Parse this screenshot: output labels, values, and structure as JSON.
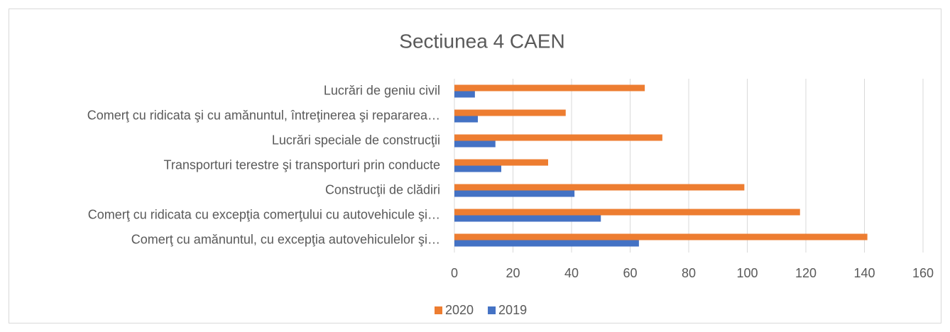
{
  "chart_data": {
    "type": "hbar",
    "title": "Sectiunea 4  CAEN",
    "categories": [
      "Lucrări de geniu civil",
      "Comerţ cu ridicata şi cu amănuntul, întreţinerea şi repararea…",
      "Lucrări speciale de construcţii",
      "Transporturi terestre şi transporturi prin conducte",
      "Construcţii de clădiri",
      "Comerţ cu ridicata cu excepţia comerţului cu autovehicule şi…",
      "Comerţ cu amănuntul, cu excepţia autovehiculelor şi…"
    ],
    "series": [
      {
        "name": "2020",
        "color": "#ed7d31",
        "values": [
          65,
          38,
          71,
          32,
          99,
          118,
          141
        ]
      },
      {
        "name": "2019",
        "color": "#4472c4",
        "values": [
          7,
          8,
          14,
          16,
          41,
          50,
          63
        ]
      }
    ],
    "xlim": [
      0,
      160
    ],
    "xticks": [
      0,
      20,
      40,
      60,
      80,
      100,
      120,
      140,
      160
    ],
    "grid": true,
    "legend": "bottom"
  }
}
